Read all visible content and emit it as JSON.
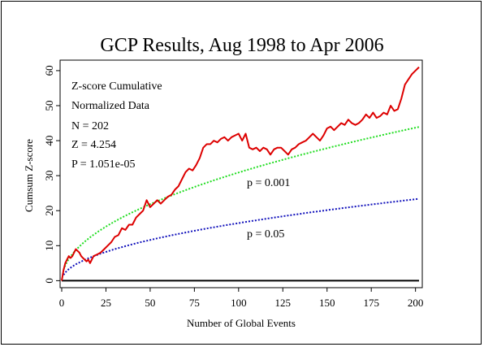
{
  "chart_data": {
    "type": "line",
    "title": "GCP Results, Aug 1998 to Apr 2006",
    "xlabel": "Number of Global Events",
    "ylabel": "Cumsum Z-score",
    "xlim": [
      0,
      202
    ],
    "ylim": [
      -2,
      63
    ],
    "x_ticks": [
      0,
      25,
      50,
      75,
      100,
      125,
      150,
      175,
      200
    ],
    "y_ticks": [
      0,
      10,
      20,
      30,
      40,
      50,
      60
    ],
    "x_tick_labels": [
      "0",
      "25",
      "50",
      "75",
      "100",
      "125",
      "150",
      "175",
      "200"
    ],
    "y_tick_labels": [
      "0",
      "10",
      "20",
      "30",
      "40",
      "50",
      "60"
    ],
    "stats": [
      "Z-score Cumulative",
      "Normalized Data",
      "N = 202",
      "Z = 4.254",
      "P = 1.051e-05"
    ],
    "reference_lines": [
      {
        "label": "p = 0.001",
        "color": "#22dd22",
        "z": 3.09
      },
      {
        "label": "p = 0.05",
        "color": "#1010bb",
        "z": 1.645
      }
    ],
    "baseline": 0,
    "series": [
      {
        "color": "#dd0000",
        "x": [
          0,
          1,
          2,
          3,
          4,
          5,
          6,
          7,
          8,
          9,
          10,
          11,
          12,
          13,
          14,
          15,
          16,
          17,
          18,
          20,
          22,
          24,
          26,
          28,
          30,
          32,
          34,
          36,
          38,
          40,
          42,
          44,
          46,
          48,
          50,
          52,
          54,
          56,
          58,
          60,
          62,
          64,
          66,
          68,
          70,
          72,
          74,
          76,
          78,
          80,
          82,
          84,
          86,
          88,
          90,
          92,
          94,
          96,
          98,
          100,
          102,
          104,
          106,
          108,
          110,
          112,
          114,
          116,
          118,
          120,
          122,
          124,
          126,
          128,
          130,
          132,
          134,
          136,
          138,
          140,
          142,
          144,
          146,
          148,
          150,
          152,
          154,
          156,
          158,
          160,
          162,
          164,
          166,
          168,
          170,
          172,
          174,
          176,
          178,
          180,
          182,
          184,
          186,
          188,
          190,
          192,
          194,
          196,
          198,
          200,
          202
        ],
        "y": [
          0,
          3,
          5,
          6,
          7,
          6.5,
          7,
          8,
          9,
          8.5,
          8,
          7,
          6.5,
          6,
          5.5,
          6,
          5,
          6,
          7,
          7.5,
          8,
          9,
          10,
          11,
          12.5,
          13,
          15,
          14.5,
          16,
          16,
          18,
          19,
          20,
          23,
          21,
          22,
          23,
          22,
          23,
          24,
          24.5,
          26,
          27,
          29,
          31,
          32,
          31.5,
          33,
          35,
          38,
          39,
          39,
          40,
          39.5,
          40.5,
          41,
          40,
          41,
          41.5,
          42,
          40,
          42,
          38,
          37.5,
          38,
          37,
          38,
          37.5,
          36,
          37.5,
          38,
          38,
          37,
          36,
          37.5,
          38,
          39,
          39.5,
          40,
          41,
          42,
          41,
          40,
          41.5,
          43.5,
          44,
          43,
          44,
          45,
          44.5,
          46,
          45,
          44.5,
          45,
          46,
          47.5,
          46.5,
          48,
          46.5,
          47,
          48,
          47.5,
          50,
          48.5,
          49,
          52,
          56,
          57.5,
          59,
          60,
          61
        ]
      }
    ]
  }
}
